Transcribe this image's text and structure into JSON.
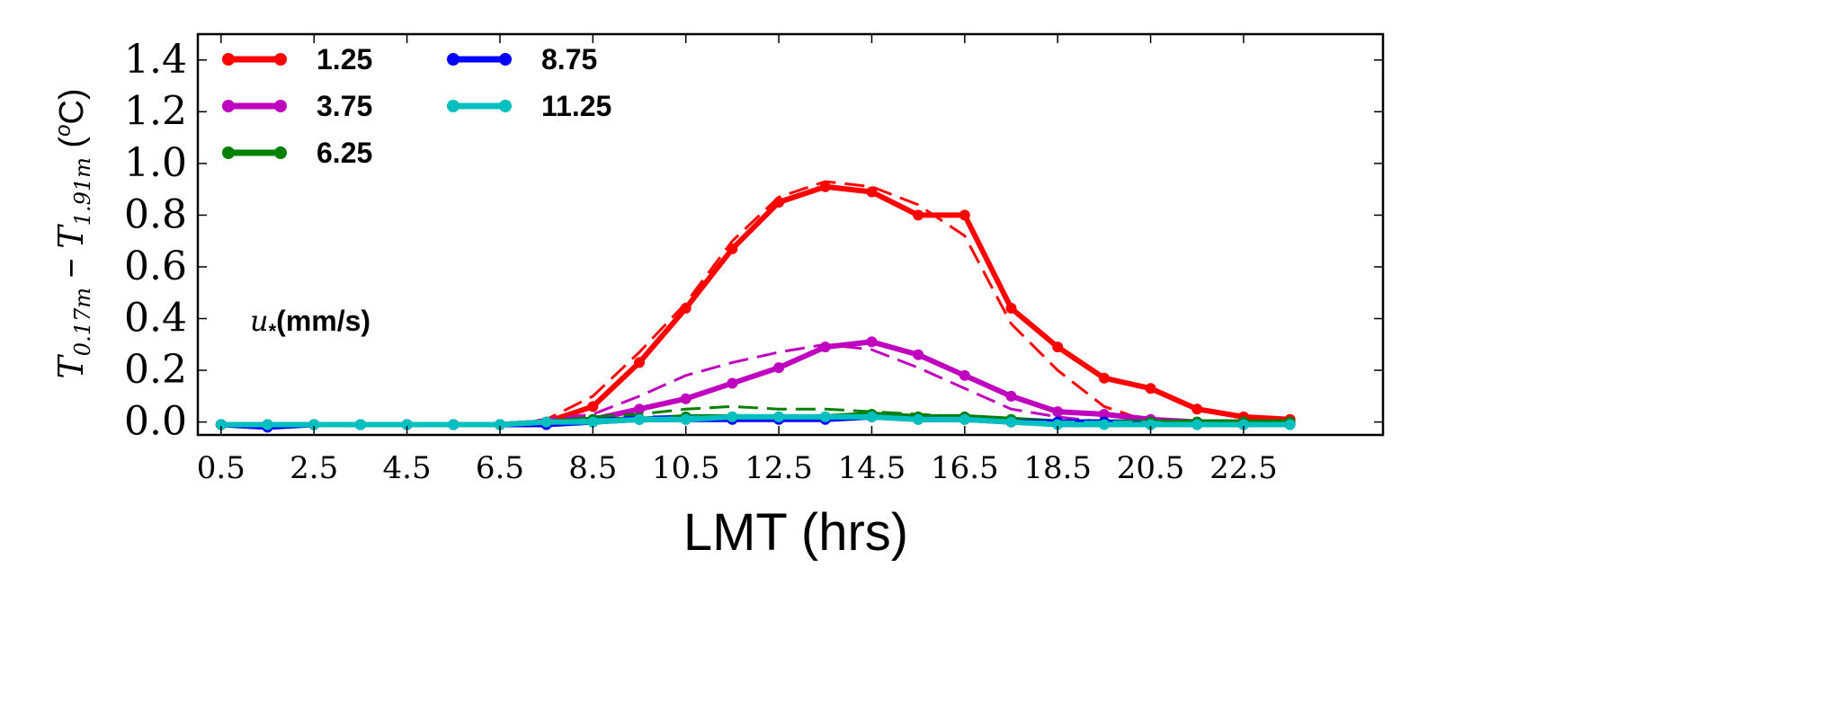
{
  "chart_data": {
    "type": "line",
    "title": "",
    "xlabel": "LMT (hrs)",
    "ylabel_parts": {
      "main": "T",
      "sub1": "0.17m",
      "minus": " − ",
      "main2": "T",
      "sub2": "1.91m",
      "unit": " (",
      "sup": "o",
      "unit_end": "C)"
    },
    "annotation": {
      "symbol": "u",
      "sub": "*",
      "text": "(mm/s)"
    },
    "xlim": [
      0,
      25.5
    ],
    "ylim": [
      -0.05,
      1.5
    ],
    "x_ticks": [
      0.5,
      2.5,
      4.5,
      6.5,
      8.5,
      10.5,
      12.5,
      14.5,
      16.5,
      18.5,
      20.5,
      22.5
    ],
    "x_tick_labels": [
      "0.5",
      "2.5",
      "4.5",
      "6.5",
      "8.5",
      "10.5",
      "12.5",
      "14.5",
      "16.5",
      "18.5",
      "20.5",
      "22.5"
    ],
    "y_ticks": [
      0.0,
      0.2,
      0.4,
      0.6,
      0.8,
      1.0,
      1.2,
      1.4
    ],
    "y_tick_labels": [
      "0.0",
      "0.2",
      "0.4",
      "0.6",
      "0.8",
      "1.0",
      "1.2",
      "1.4"
    ],
    "legend_position": "top-left",
    "grid": false,
    "x": [
      0.5,
      1.5,
      2.5,
      3.5,
      4.5,
      5.5,
      6.5,
      7.5,
      8.5,
      9.5,
      10.5,
      11.5,
      12.5,
      13.5,
      14.5,
      15.5,
      16.5,
      17.5,
      18.5,
      19.5,
      20.5,
      21.5,
      22.5,
      23.5
    ],
    "series": [
      {
        "name": "1.25",
        "color": "#ff0000",
        "values": [
          -0.01,
          -0.01,
          -0.01,
          -0.01,
          -0.01,
          -0.01,
          -0.01,
          0.0,
          0.06,
          0.23,
          0.44,
          0.67,
          0.85,
          0.91,
          0.89,
          0.8,
          0.8,
          0.44,
          0.29,
          0.17,
          0.13,
          0.05,
          0.02,
          0.01
        ],
        "fit": [
          -0.01,
          -0.01,
          -0.01,
          -0.01,
          -0.01,
          -0.01,
          -0.01,
          0.01,
          0.1,
          0.27,
          0.46,
          0.7,
          0.87,
          0.93,
          0.91,
          0.84,
          0.72,
          0.38,
          0.2,
          0.06,
          0.0,
          -0.01,
          -0.01,
          -0.01
        ]
      },
      {
        "name": "3.75",
        "color": "#bf00bf",
        "values": [
          -0.01,
          -0.01,
          -0.01,
          -0.01,
          -0.01,
          -0.01,
          -0.01,
          0.0,
          0.01,
          0.05,
          0.09,
          0.15,
          0.21,
          0.29,
          0.31,
          0.26,
          0.18,
          0.1,
          0.04,
          0.03,
          0.01,
          0.0,
          0.0,
          0.0
        ],
        "fit": [
          -0.01,
          -0.01,
          -0.01,
          -0.01,
          -0.01,
          -0.01,
          -0.01,
          0.01,
          0.03,
          0.1,
          0.18,
          0.23,
          0.27,
          0.3,
          0.28,
          0.21,
          0.13,
          0.05,
          0.02,
          0.0,
          0.0,
          0.0,
          0.0,
          0.0
        ]
      },
      {
        "name": "6.25",
        "color": "#008000",
        "values": [
          -0.01,
          -0.01,
          -0.01,
          -0.01,
          -0.01,
          -0.01,
          -0.01,
          0.0,
          0.01,
          0.01,
          0.02,
          0.02,
          0.02,
          0.02,
          0.03,
          0.02,
          0.02,
          0.01,
          0.0,
          0.0,
          0.0,
          0.0,
          0.0,
          0.0
        ],
        "fit": [
          -0.01,
          -0.01,
          -0.01,
          -0.01,
          -0.01,
          -0.01,
          -0.01,
          0.0,
          0.02,
          0.03,
          0.05,
          0.06,
          0.05,
          0.05,
          0.04,
          0.03,
          0.02,
          0.01,
          0.0,
          0.0,
          0.0,
          0.0,
          0.0,
          0.0
        ]
      },
      {
        "name": "8.75",
        "color": "#0000ff",
        "values": [
          -0.01,
          -0.02,
          -0.01,
          -0.01,
          -0.01,
          -0.01,
          -0.01,
          -0.01,
          0.0,
          0.01,
          0.01,
          0.01,
          0.01,
          0.01,
          0.02,
          0.01,
          0.01,
          0.0,
          0.0,
          0.0,
          -0.01,
          -0.01,
          -0.01,
          -0.01
        ],
        "fit": [
          -0.01,
          -0.01,
          -0.01,
          -0.01,
          -0.01,
          -0.01,
          -0.01,
          0.0,
          0.01,
          0.02,
          0.02,
          0.02,
          0.02,
          0.02,
          0.02,
          0.01,
          0.01,
          0.0,
          0.0,
          0.0,
          0.0,
          -0.01,
          -0.01,
          -0.01
        ]
      },
      {
        "name": "11.25",
        "color": "#00bfbf",
        "values": [
          -0.01,
          -0.01,
          -0.01,
          -0.01,
          -0.01,
          -0.01,
          -0.01,
          0.0,
          0.0,
          0.01,
          0.01,
          0.02,
          0.02,
          0.02,
          0.02,
          0.01,
          0.01,
          0.0,
          -0.01,
          -0.01,
          -0.01,
          -0.01,
          -0.01,
          -0.01
        ],
        "fit": [
          -0.01,
          -0.01,
          -0.01,
          -0.01,
          -0.01,
          -0.01,
          -0.01,
          0.0,
          0.01,
          0.01,
          0.02,
          0.02,
          0.02,
          0.02,
          0.02,
          0.01,
          0.01,
          0.0,
          0.0,
          0.0,
          0.0,
          -0.01,
          -0.01,
          -0.01
        ]
      }
    ]
  }
}
